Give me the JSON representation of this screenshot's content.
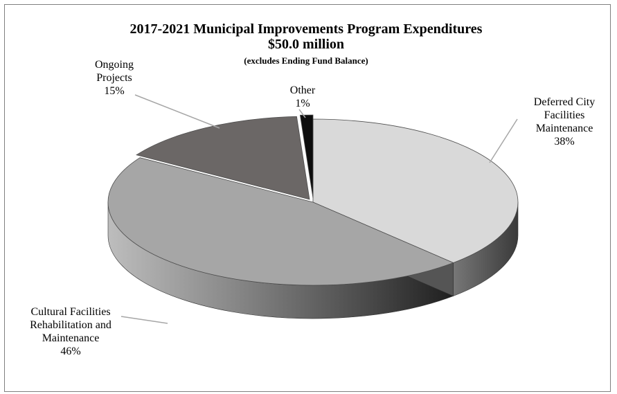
{
  "chart_data": {
    "type": "pie",
    "title": "2017-2021 Municipal Improvements Program Expenditures",
    "subtitle": "$50.0 million",
    "note": "(excludes Ending Fund Balance)",
    "slices": [
      {
        "label_lines": [
          "Deferred City",
          "Facilities",
          "Maintenance"
        ],
        "value": 38,
        "value_label": "38%",
        "color": "#d9d9d9"
      },
      {
        "label_lines": [
          "Cultural Facilities",
          "Rehabilitation and",
          "Maintenance"
        ],
        "value": 46,
        "value_label": "46%",
        "color": "#a6a6a6"
      },
      {
        "label_lines": [
          "Ongoing",
          "Projects"
        ],
        "value": 15,
        "value_label": "15%",
        "color": "#6b6766"
      },
      {
        "label_lines": [
          "Other"
        ],
        "value": 1,
        "value_label": "1%",
        "color": "#0d0d0d"
      }
    ]
  }
}
